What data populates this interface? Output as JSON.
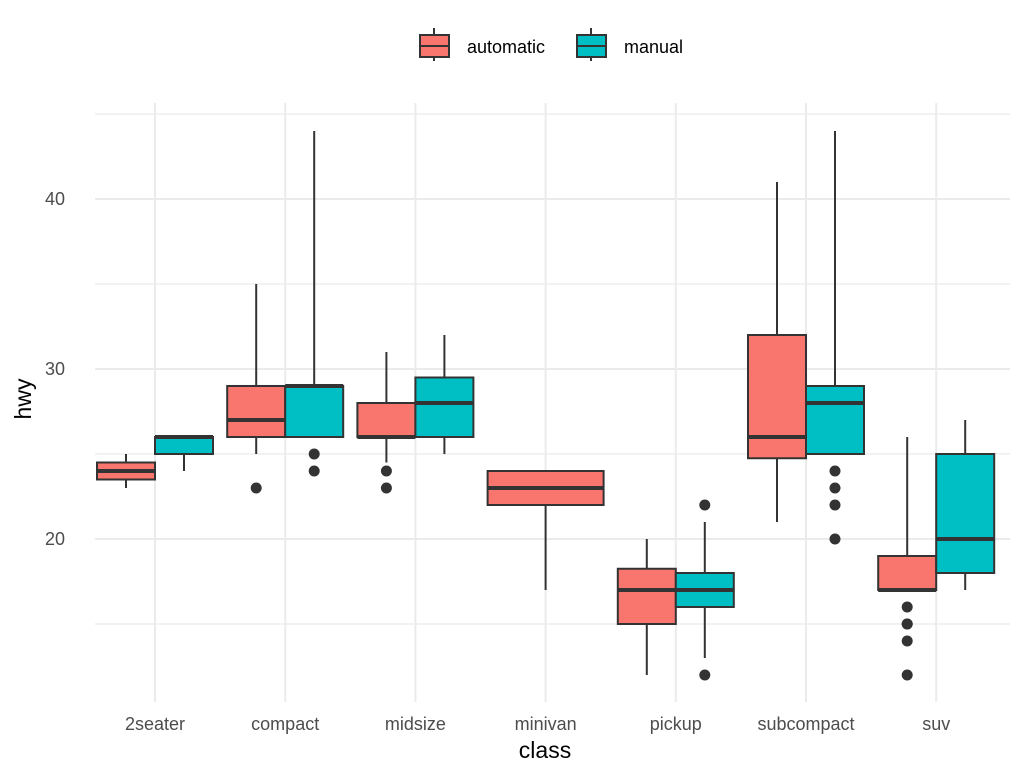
{
  "chart_data": {
    "type": "boxplot",
    "xlabel": "class",
    "ylabel": "hwy",
    "categories": [
      "2seater",
      "compact",
      "midsize",
      "minivan",
      "pickup",
      "subcompact",
      "suv"
    ],
    "yticks": [
      20,
      30,
      40
    ],
    "ylim": [
      10.5,
      45.5
    ],
    "grid": true,
    "legend_position": "top",
    "series": [
      {
        "name": "automatic",
        "color": "#F8766D",
        "boxes": [
          {
            "category": "2seater",
            "whisker_low": 23,
            "q1": 23.5,
            "median": 24,
            "q3": 24.5,
            "whisker_high": 25,
            "outliers": []
          },
          {
            "category": "compact",
            "whisker_low": 25,
            "q1": 26,
            "median": 27,
            "q3": 29,
            "whisker_high": 35,
            "outliers": [
              23
            ]
          },
          {
            "category": "midsize",
            "whisker_low": 24.5,
            "q1": 26,
            "median": 26,
            "q3": 28,
            "whisker_high": 31,
            "outliers": [
              24,
              23
            ]
          },
          {
            "category": "minivan",
            "whisker_low": 17,
            "q1": 22,
            "median": 23,
            "q3": 24,
            "whisker_high": 24,
            "outliers": []
          },
          {
            "category": "pickup",
            "whisker_low": 12,
            "q1": 15,
            "median": 17,
            "q3": 18.25,
            "whisker_high": 20,
            "outliers": []
          },
          {
            "category": "subcompact",
            "whisker_low": 21,
            "q1": 24.75,
            "median": 26,
            "q3": 32,
            "whisker_high": 41,
            "outliers": []
          },
          {
            "category": "suv",
            "whisker_low": 17,
            "q1": 17,
            "median": 17,
            "q3": 19,
            "whisker_high": 26,
            "outliers": [
              16,
              15,
              15,
              14,
              12
            ]
          }
        ]
      },
      {
        "name": "manual",
        "color": "#00BFC4",
        "boxes": [
          {
            "category": "2seater",
            "whisker_low": 24,
            "q1": 25,
            "median": 26,
            "q3": 26,
            "whisker_high": 26,
            "outliers": []
          },
          {
            "category": "compact",
            "whisker_low": 26,
            "q1": 26,
            "median": 29,
            "q3": 29,
            "whisker_high": 44,
            "outliers": [
              25,
              24
            ]
          },
          {
            "category": "midsize",
            "whisker_low": 25,
            "q1": 26,
            "median": 28,
            "q3": 29.5,
            "whisker_high": 32,
            "outliers": []
          },
          {
            "category": "pickup",
            "whisker_low": 13,
            "q1": 16,
            "median": 17,
            "q3": 18,
            "whisker_high": 21,
            "outliers": [
              22,
              12
            ]
          },
          {
            "category": "subcompact",
            "whisker_low": 25,
            "q1": 25,
            "median": 28,
            "q3": 29,
            "whisker_high": 44,
            "outliers": [
              24,
              23,
              22,
              20
            ]
          },
          {
            "category": "suv",
            "whisker_low": 17,
            "q1": 18,
            "median": 20,
            "q3": 25,
            "whisker_high": 27,
            "outliers": []
          }
        ]
      }
    ]
  }
}
